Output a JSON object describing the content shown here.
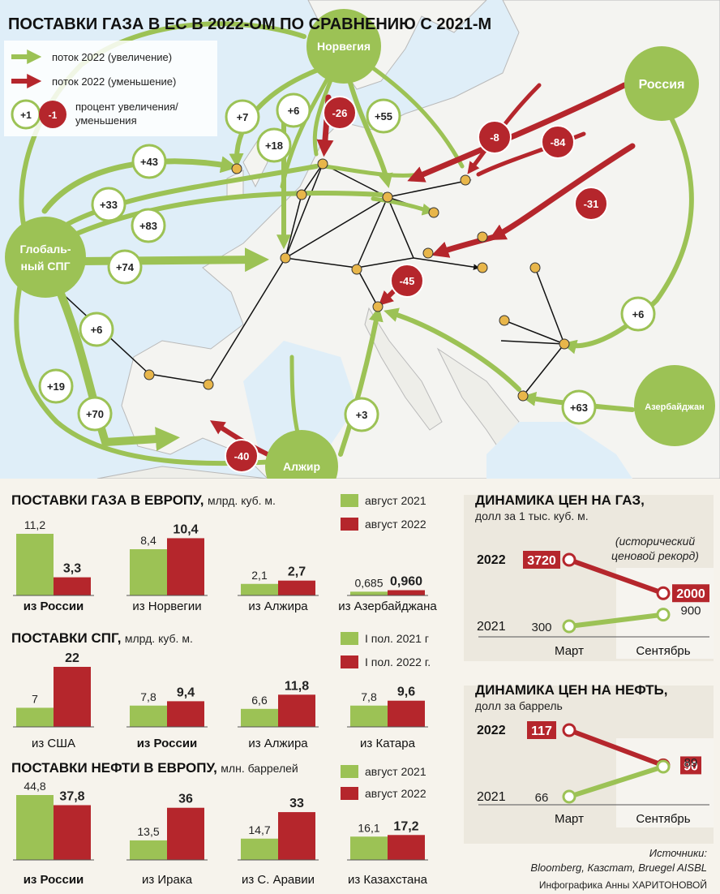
{
  "title": "ПОСТАВКИ ГАЗА В ЕС В 2022-ОМ ПО СРАВНЕНИЮ С 2021-М",
  "legend": {
    "increase": "поток 2022 (увеличение)",
    "decrease": "поток 2022 (уменьшение)",
    "plus_sample": "+1",
    "minus_sample": "-1",
    "percent_line1": "процент увеличения/",
    "percent_line2": "уменьшения"
  },
  "colors": {
    "green": "#9cc255",
    "red": "#b5262c",
    "node": "#e8b64a"
  },
  "map": {
    "sources": {
      "norway": "Норвегия",
      "russia": "Россия",
      "lng_line1": "Глобаль-",
      "lng_line2": "ный СПГ",
      "azerbaijan": "Азербайджан",
      "algeria": "Алжир"
    },
    "green_labels": [
      "+7",
      "+6",
      "+55",
      "+18",
      "+43",
      "+33",
      "+83",
      "+74",
      "+6",
      "+19",
      "+70",
      "+3",
      "+6",
      "+63"
    ],
    "red_labels": [
      "-26",
      "-8",
      "-84",
      "-31",
      "-45",
      "-40"
    ]
  },
  "chart_data": [
    {
      "type": "bar",
      "title": "ПОСТАВКИ ГАЗА В ЕВРОПУ,",
      "unit": "млрд. куб. м.",
      "categories": [
        "из России",
        "из Норвегии",
        "из Алжира",
        "из Азербайджана"
      ],
      "series": [
        {
          "name": "август 2021",
          "values": [
            11.2,
            8.4,
            2.1,
            0.685
          ],
          "labels": [
            "11,2",
            "8,4",
            "2,1",
            "0,685"
          ]
        },
        {
          "name": "август 2022",
          "values": [
            3.3,
            10.4,
            2.7,
            0.96
          ],
          "labels": [
            "3,3",
            "10,4",
            "2,7",
            "0,960"
          ]
        }
      ],
      "ylim": [
        0,
        11.2
      ]
    },
    {
      "type": "bar",
      "title": "ПОСТАВКИ СПГ,",
      "unit": "млрд. куб. м.",
      "categories": [
        "из США",
        "из России",
        "из Алжира",
        "из Катара"
      ],
      "series": [
        {
          "name": "I пол. 2021 г",
          "values": [
            7,
            7.8,
            6.6,
            7.8
          ],
          "labels": [
            "7",
            "7,8",
            "6,6",
            "7,8"
          ]
        },
        {
          "name": "I пол. 2022 г.",
          "values": [
            22,
            9.4,
            11.8,
            9.6
          ],
          "labels": [
            "22",
            "9,4",
            "11,8",
            "9,6"
          ]
        }
      ],
      "ylim": [
        0,
        22
      ]
    },
    {
      "type": "bar",
      "title": "ПОСТАВКИ НЕФТИ В ЕВРОПУ,",
      "unit": "млн. баррелей",
      "categories": [
        "из России",
        "из Ирака",
        "из С. Аравии",
        "из Казахстана"
      ],
      "series": [
        {
          "name": "август 2021",
          "values": [
            44.8,
            13.5,
            14.7,
            16.1
          ],
          "labels": [
            "44,8",
            "13,5",
            "14,7",
            "16,1"
          ]
        },
        {
          "name": "август 2022",
          "values": [
            37.8,
            36,
            33,
            17.2
          ],
          "labels": [
            "37,8",
            "36",
            "33",
            "17,2"
          ]
        }
      ],
      "ylim": [
        0,
        44.8
      ]
    },
    {
      "type": "line",
      "title": "ДИНАМИКА ЦЕН НА ГАЗ,",
      "unit": "долл за 1 тыс. куб. м.",
      "categories": [
        "Март",
        "Сентябрь"
      ],
      "series": [
        {
          "name": "2022",
          "values": [
            3720,
            2000
          ],
          "labels": [
            "3720",
            "2000"
          ]
        },
        {
          "name": "2021",
          "values": [
            300,
            900
          ],
          "labels": [
            "300",
            "900"
          ]
        }
      ],
      "annotation_line1": "(исторический",
      "annotation_line2": "ценовой рекорд)"
    },
    {
      "type": "line",
      "title": "ДИНАМИКА ЦЕН НА НЕФТЬ,",
      "unit": "долл за баррель",
      "categories": [
        "Март",
        "Сентябрь"
      ],
      "series": [
        {
          "name": "2022",
          "values": [
            117,
            90
          ],
          "labels": [
            "117",
            "90"
          ]
        },
        {
          "name": "2021",
          "values": [
            66,
            89
          ],
          "labels": [
            "66",
            "89"
          ]
        }
      ]
    }
  ],
  "sources": {
    "label": "Источники:",
    "list": "Bloomberg, Казстат, Bruegel AISBL",
    "credit": "Инфографика Анны ХАРИТОНОВОЙ"
  }
}
